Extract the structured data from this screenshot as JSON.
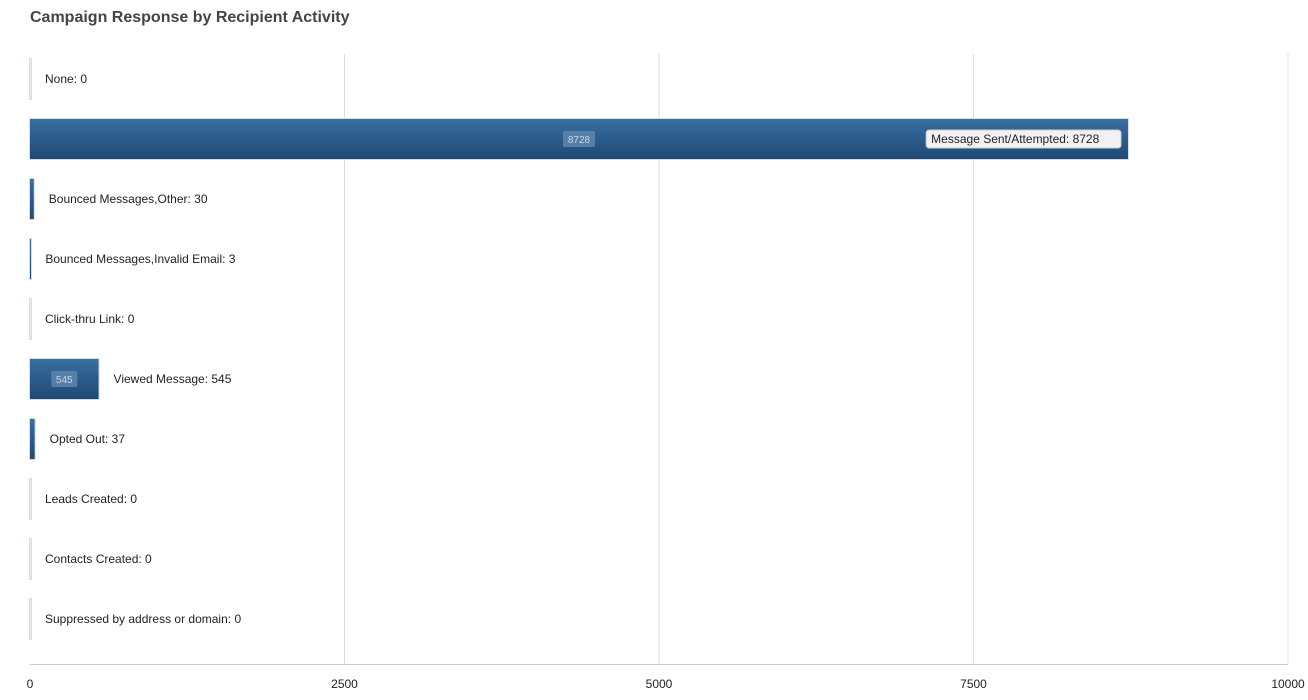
{
  "chart_data": {
    "type": "bar",
    "orientation": "horizontal",
    "title": "Campaign Response by Recipient Activity",
    "xlabel": "",
    "ylabel": "",
    "xlim": [
      0,
      10000
    ],
    "x_ticks": [
      0,
      2500,
      5000,
      7500,
      10000
    ],
    "grid": true,
    "legend": "none",
    "categories": [
      "None",
      "Message Sent/Attempted",
      "Bounced Messages,Other",
      "Bounced Messages,Invalid Email",
      "Click-thru Link",
      "Viewed Message",
      "Opted Out",
      "Leads Created",
      "Contacts Created",
      "Suppressed by address or domain"
    ],
    "values": [
      0,
      8728,
      30,
      3,
      0,
      545,
      37,
      0,
      0,
      0
    ],
    "data_labels": [
      "None: 0",
      "Message Sent/Attempted: 8728",
      "Bounced Messages,Other: 30",
      "Bounced Messages,Invalid Email: 3",
      "Click-thru Link: 0",
      "Viewed Message: 545",
      "Opted Out: 37",
      "Leads Created: 0",
      "Contacts Created: 0",
      "Suppressed by address or domain: 0"
    ],
    "inner_value_labels": [
      "8728",
      "545"
    ],
    "colors": {
      "bar": "#2b5e8e",
      "bar_dark": "#1f4a73",
      "grid": "#dddddd",
      "axis": "#cccccc",
      "text": "#222222",
      "title": "#444444"
    }
  }
}
